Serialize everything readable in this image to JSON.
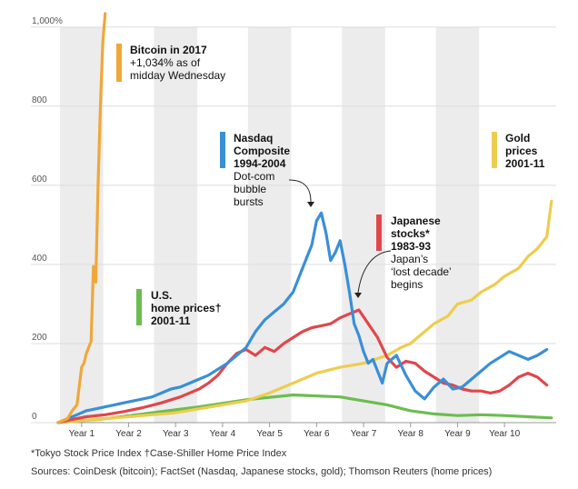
{
  "chart_data": {
    "type": "line",
    "y_axis": {
      "range": [
        0,
        1050
      ],
      "ticks": [
        0,
        200,
        400,
        600,
        800,
        1000
      ],
      "tick_labels": [
        "0",
        "200",
        "400",
        "600",
        "800",
        "1,000%"
      ]
    },
    "x_axis": {
      "range": [
        0,
        10.6
      ],
      "categories": [
        "Year 1",
        "Year 2",
        "Year 3",
        "Year 4",
        "Year 5",
        "Year 6",
        "Year 7",
        "Year 8",
        "Year 9",
        "Year 10"
      ]
    },
    "grid": "horizontal gridlines, alternating shaded year bands",
    "legend": "inline labels",
    "colors": {
      "bitcoin": "#f0a73a",
      "nasdaq": "#3a8fd6",
      "japan": "#e0474c",
      "gold": "#edcd4f",
      "home": "#6cbd4f",
      "band": "#ececec",
      "grid": "#dddddd"
    },
    "series": [
      {
        "id": "bitcoin",
        "name": "Bitcoin in 2017",
        "x": [
          0,
          0.1,
          0.2,
          0.3,
          0.4,
          0.5,
          0.55,
          0.6,
          0.7,
          0.75,
          0.8,
          0.85,
          0.9,
          0.95,
          1.0
        ],
        "values": [
          0,
          5,
          10,
          30,
          45,
          140,
          150,
          175,
          205,
          395,
          355,
          600,
          800,
          960,
          1034
        ]
      },
      {
        "id": "nasdaq",
        "name": "Nasdaq Composite 1994-2004",
        "x": [
          0,
          0.2,
          0.4,
          0.6,
          0.8,
          1.0,
          1.2,
          1.4,
          1.6,
          1.8,
          2.0,
          2.2,
          2.4,
          2.6,
          2.8,
          3.0,
          3.2,
          3.4,
          3.6,
          3.8,
          4.0,
          4.2,
          4.4,
          4.6,
          4.8,
          5.0,
          5.2,
          5.4,
          5.5,
          5.6,
          5.7,
          5.8,
          5.9,
          6.0,
          6.1,
          6.2,
          6.3,
          6.4,
          6.5,
          6.6,
          6.7,
          6.8,
          6.9,
          7.0,
          7.2,
          7.4,
          7.6,
          7.8,
          8.0,
          8.2,
          8.4,
          8.6,
          8.8,
          9.0,
          9.2,
          9.4,
          9.6,
          9.8,
          10.0,
          10.2,
          10.4
        ],
        "values": [
          0,
          10,
          20,
          30,
          35,
          40,
          45,
          50,
          55,
          60,
          65,
          75,
          85,
          90,
          100,
          110,
          120,
          135,
          150,
          170,
          190,
          230,
          260,
          280,
          300,
          330,
          390,
          450,
          510,
          530,
          480,
          410,
          430,
          460,
          400,
          330,
          250,
          220,
          180,
          150,
          160,
          130,
          100,
          150,
          170,
          120,
          80,
          60,
          90,
          110,
          85,
          90,
          110,
          130,
          150,
          165,
          180,
          170,
          160,
          170,
          185
        ]
      },
      {
        "id": "japan",
        "name": "Japanese stocks* 1983-93",
        "x": [
          0,
          0.3,
          0.6,
          1.0,
          1.4,
          1.8,
          2.2,
          2.6,
          3.0,
          3.2,
          3.4,
          3.6,
          3.8,
          4.0,
          4.2,
          4.4,
          4.6,
          4.8,
          5.0,
          5.2,
          5.4,
          5.6,
          5.8,
          6.0,
          6.2,
          6.4,
          6.6,
          6.8,
          7.0,
          7.2,
          7.4,
          7.6,
          7.8,
          8.0,
          8.2,
          8.4,
          8.6,
          8.8,
          9.0,
          9.2,
          9.4,
          9.6,
          9.8,
          10.0,
          10.2,
          10.4
        ],
        "values": [
          0,
          8,
          15,
          20,
          28,
          38,
          50,
          65,
          85,
          100,
          120,
          150,
          175,
          185,
          170,
          190,
          180,
          200,
          215,
          230,
          240,
          245,
          250,
          265,
          275,
          285,
          250,
          215,
          165,
          140,
          155,
          150,
          130,
          115,
          100,
          95,
          85,
          80,
          80,
          75,
          80,
          95,
          115,
          125,
          115,
          95
        ]
      },
      {
        "id": "gold",
        "name": "Gold prices 2001-11",
        "x": [
          0,
          0.5,
          1.0,
          1.5,
          2.0,
          2.5,
          3.0,
          3.5,
          4.0,
          4.5,
          5.0,
          5.5,
          6.0,
          6.5,
          7.0,
          7.3,
          7.5,
          7.8,
          8.0,
          8.3,
          8.5,
          8.8,
          9.0,
          9.3,
          9.5,
          9.8,
          10.0,
          10.2,
          10.4,
          10.5
        ],
        "values": [
          0,
          5,
          10,
          15,
          20,
          25,
          35,
          45,
          55,
          75,
          100,
          125,
          140,
          150,
          170,
          190,
          200,
          230,
          250,
          270,
          300,
          310,
          330,
          350,
          370,
          390,
          420,
          440,
          470,
          560
        ]
      },
      {
        "id": "home",
        "name": "U.S. home prices† 2001-11",
        "x": [
          0,
          1,
          2,
          3,
          4,
          5,
          6,
          6.5,
          7,
          7.5,
          8,
          8.5,
          9,
          9.5,
          10,
          10.5
        ],
        "values": [
          0,
          10,
          25,
          40,
          58,
          70,
          65,
          55,
          45,
          30,
          22,
          18,
          20,
          18,
          15,
          12
        ]
      }
    ],
    "annotations": [
      {
        "series": "bitcoin",
        "title": [
          "Bitcoin in 2017"
        ],
        "text": [
          "+1,034% as of",
          "midday Wednesday"
        ]
      },
      {
        "series": "nasdaq",
        "title": [
          "Nasdaq",
          "Composite",
          "1994-2004"
        ],
        "text": [
          "Dot-com",
          "bubble",
          "bursts"
        ]
      },
      {
        "series": "japan",
        "title": [
          "Japanese",
          "stocks*",
          "1983-93"
        ],
        "text": [
          "Japan’s",
          "‘lost decade’",
          "begins"
        ]
      },
      {
        "series": "gold",
        "title": [
          "Gold",
          "prices",
          "2001-11"
        ],
        "text": []
      },
      {
        "series": "home",
        "title": [
          "U.S.",
          "home prices†",
          "2001-11"
        ],
        "text": []
      }
    ]
  },
  "footnotes": {
    "line1": "*Tokyo Stock Price Index   †Case-Shiller Home Price Index",
    "line2": "Sources: CoinDesk (bitcoin); FactSet (Nasdaq, Japanese stocks, gold); Thomson Reuters (home prices)"
  }
}
